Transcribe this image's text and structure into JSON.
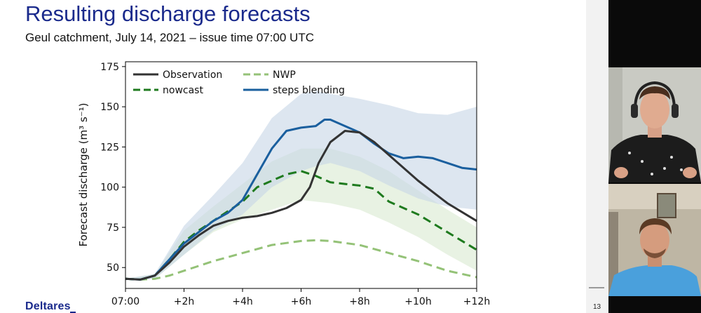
{
  "slide": {
    "title": "Resulting discharge forecasts",
    "subtitle": "Geul catchment, July 14, 2021 – issue time 07:00 UTC",
    "logo_text": "Deltares",
    "page_number": "13"
  },
  "colors": {
    "title": "#1a2a8c",
    "observation": "#333333",
    "nowcast": "#1e7a1e",
    "nwp": "#94c277",
    "steps_blending": "#1a5f9e",
    "nowcast_band": "#d9ead0",
    "blending_band": "#c6d6e6"
  },
  "chart_data": {
    "type": "line",
    "ylabel": "Forecast discharge (m³ s⁻¹)",
    "xlabel": "",
    "x_ticks": [
      "07:00",
      "+2h",
      "+4h",
      "+6h",
      "+8h",
      "+10h",
      "+12h"
    ],
    "xlim": [
      0,
      12
    ],
    "ylim": [
      37,
      178
    ],
    "y_ticks": [
      50,
      75,
      100,
      125,
      150,
      175
    ],
    "grid": false,
    "legend_placement": "top-left",
    "series": [
      {
        "name": "Observation",
        "style": "solid",
        "x": [
          0,
          0.5,
          1,
          1.5,
          2,
          2.5,
          3,
          3.5,
          4,
          4.5,
          5,
          5.5,
          6,
          6.3,
          6.6,
          7,
          7.5,
          8,
          8.5,
          9,
          10,
          11,
          12
        ],
        "values": [
          43,
          42.5,
          45,
          53,
          63,
          70,
          76,
          79,
          81,
          82,
          84,
          87,
          92,
          100,
          115,
          128,
          135,
          134,
          128,
          120,
          104,
          90,
          79
        ]
      },
      {
        "name": "nowcast",
        "style": "dashed",
        "x": [
          0,
          0.5,
          1,
          1.5,
          2,
          2.5,
          3,
          3.5,
          4,
          4.5,
          5,
          5.5,
          6,
          6.5,
          7,
          7.5,
          8,
          8.5,
          9,
          10,
          11,
          12
        ],
        "values": [
          43,
          42.5,
          45,
          55,
          66,
          73,
          79,
          85,
          91,
          100,
          104,
          108,
          110,
          107,
          103,
          102,
          101,
          99,
          91,
          83,
          72,
          61
        ]
      },
      {
        "name": "NWP",
        "style": "dashed",
        "x": [
          0,
          0.5,
          1,
          1.5,
          2,
          3,
          4,
          5,
          6,
          6.5,
          7,
          8,
          9,
          10,
          11,
          12
        ],
        "values": [
          43,
          42.5,
          43,
          45,
          48,
          54,
          59,
          64,
          66.5,
          67,
          66.5,
          64,
          59,
          54,
          48,
          44
        ]
      },
      {
        "name": "steps blending",
        "style": "solid",
        "x": [
          0,
          0.5,
          1,
          1.5,
          2,
          2.5,
          3,
          3.5,
          4,
          4.5,
          5,
          5.5,
          6,
          6.5,
          6.8,
          7,
          7.5,
          8,
          8.5,
          9,
          9.5,
          10,
          10.5,
          11,
          11.5,
          12
        ],
        "values": [
          43,
          42.5,
          45,
          55,
          65,
          72,
          79,
          84,
          92,
          108,
          124,
          135,
          137,
          138,
          142,
          142,
          138,
          134,
          127,
          121,
          118,
          119,
          118,
          115,
          112,
          111
        ]
      }
    ],
    "bands": [
      {
        "name": "nowcast",
        "x": [
          0,
          1,
          2,
          3,
          4,
          5,
          6,
          7,
          8,
          9,
          10,
          11,
          12
        ],
        "lower": [
          43,
          43,
          58,
          72,
          80,
          86,
          92,
          90,
          86,
          78,
          69,
          58,
          48
        ],
        "upper": [
          43,
          46,
          73,
          88,
          102,
          116,
          124,
          124,
          119,
          110,
          98,
          86,
          75
        ]
      },
      {
        "name": "steps blending",
        "x": [
          0,
          1,
          2,
          3,
          4,
          5,
          6,
          6.5,
          7,
          8,
          9,
          10,
          11,
          12
        ],
        "lower": [
          43,
          43,
          58,
          73,
          83,
          100,
          110,
          113,
          115,
          110,
          101,
          93,
          88,
          86
        ],
        "upper": [
          43,
          46,
          76,
          95,
          115,
          143,
          158,
          160,
          158,
          155,
          151,
          146,
          145,
          150
        ]
      }
    ]
  }
}
